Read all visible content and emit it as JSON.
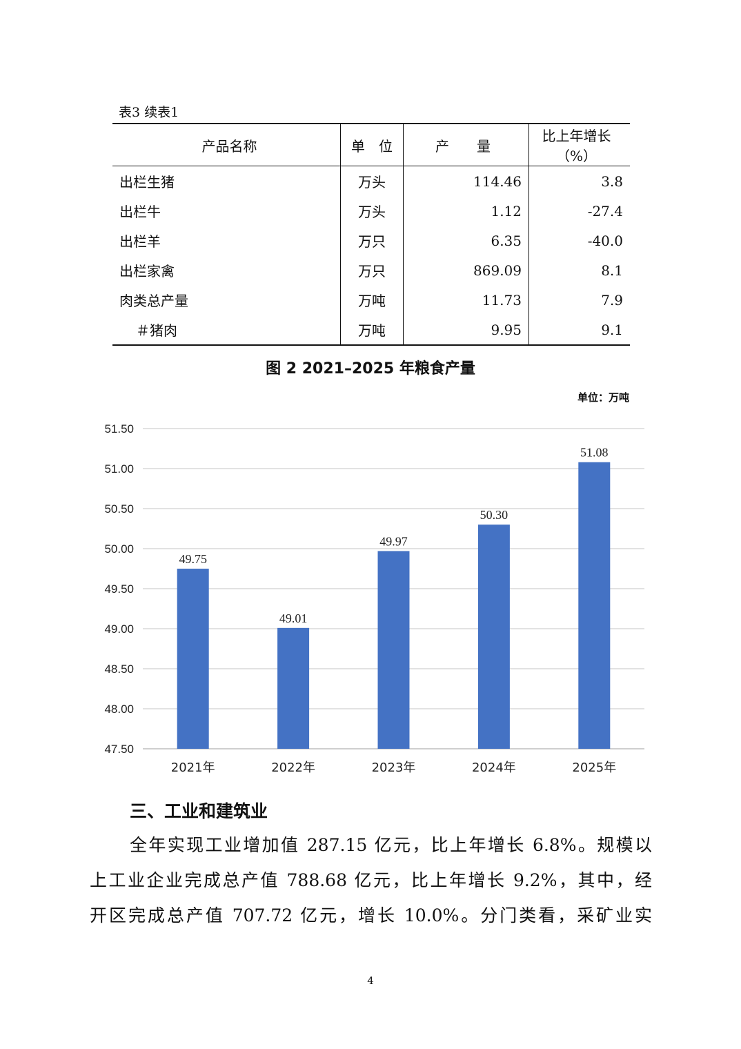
{
  "table": {
    "caption": "表3  续表1",
    "headers": [
      "产品名称",
      "单　位",
      "产　　量",
      "比上年增长（%）"
    ],
    "rows": [
      [
        "出栏生猪",
        "万头",
        "114.46",
        "3.8"
      ],
      [
        "出栏牛",
        "万头",
        "1.12",
        "-27.4"
      ],
      [
        "出栏羊",
        "万只",
        "6.35",
        "-40.0"
      ],
      [
        "出栏家禽",
        "万只",
        "869.09",
        "8.1"
      ],
      [
        "肉类总产量",
        "万吨",
        "11.73",
        "7.9"
      ],
      [
        "＃猪肉",
        "万吨",
        "9.95",
        "9.1"
      ]
    ]
  },
  "chart_data": {
    "type": "bar",
    "title": "图 2 2021–2025 年粮食产量",
    "unit_label": "单位：万吨",
    "categories": [
      "2021年",
      "2022年",
      "2023年",
      "2024年",
      "2025年"
    ],
    "values": [
      49.75,
      49.01,
      49.97,
      50.3,
      51.08
    ],
    "value_labels": [
      "49.75",
      "49.01",
      "49.97",
      "50.30",
      "51.08"
    ],
    "ylim": [
      47.5,
      51.5
    ],
    "yticks": [
      "47.50",
      "48.00",
      "48.50",
      "49.00",
      "49.50",
      "50.00",
      "50.50",
      "51.00",
      "51.50"
    ],
    "grid": true,
    "bar_color": "#4472C4"
  },
  "section": {
    "heading": "三、工业和建筑业",
    "lines": [
      "全年实现工业增加值 287.15 亿元，比上年增长 6.8%。规模以",
      "上工业企业完成总产值 788.68 亿元，比上年增长 9.2%，其中，经",
      "开区完成总产值 707.72 亿元，增长 10.0%。分门类看，采矿业实"
    ]
  },
  "page_number": "4"
}
